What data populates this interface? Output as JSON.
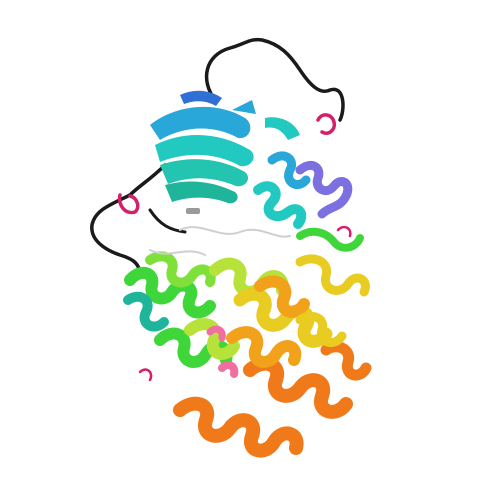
{
  "image": {
    "subject": "protein-ribbon-structure",
    "background": "#ffffff",
    "palette": {
      "blue": "#2f6fd6",
      "sky": "#2aa7d9",
      "cyan": "#22c9c0",
      "teal": "#1fb59a",
      "green": "#3fd63a",
      "lime": "#b7e23a",
      "yellow": "#e9cc22",
      "amber": "#f2a11b",
      "orange": "#f07a1a",
      "violet": "#7c6fe0",
      "magenta": "#d61f6a",
      "pink": "#f06fa0",
      "black": "#1a1a1a",
      "grey": "#9a9a9a"
    }
  }
}
